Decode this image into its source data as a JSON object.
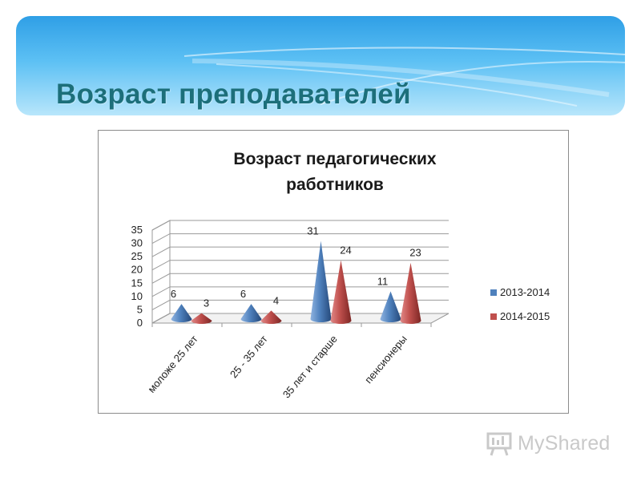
{
  "slide": {
    "title": "Возраст преподавателей"
  },
  "watermark": {
    "text": "MyShared",
    "icon": "presentation-board-icon",
    "color": "#c9c9c9"
  },
  "chart_data": {
    "type": "bar",
    "style": "3d-cone",
    "title": "Возраст педагогических работников",
    "title_lines": [
      "Возраст педагогических",
      "работников"
    ],
    "categories": [
      "моложе 25 лет",
      "25 - 35 лет",
      "35 лет и старше",
      "пенсионеры"
    ],
    "series": [
      {
        "name": "2013-2014",
        "values": [
          6,
          6,
          31,
          11
        ],
        "color": "#4f81bd"
      },
      {
        "name": "2014-2015",
        "values": [
          3,
          4,
          24,
          23
        ],
        "color": "#c0504d"
      }
    ],
    "ylim": [
      0,
      35
    ],
    "yticks": [
      0,
      5,
      10,
      15,
      20,
      25,
      30,
      35
    ],
    "grid": true,
    "data_labels": true,
    "legend_position": "right"
  }
}
